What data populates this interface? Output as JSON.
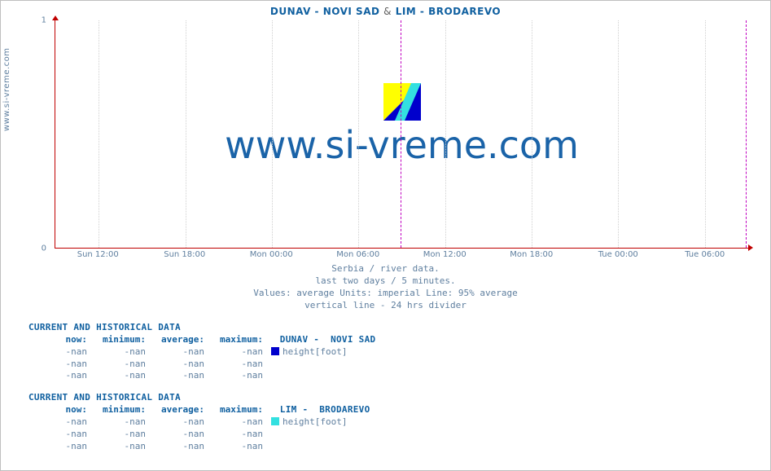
{
  "title_parts": {
    "a": "DUNAV -  NOVI SAD",
    "amp": "&",
    "b": "LIM -  BRODAREVO"
  },
  "ylabel": "www.si-vreme.com",
  "watermark": "www.si-vreme.com",
  "chart": {
    "type": "line",
    "background_color": "#ffffff",
    "axis_color": "#c00000",
    "grid_color": "#d0d0d0",
    "divider_color": "#c000c0",
    "ylim": [
      0,
      1
    ],
    "yticks": [
      {
        "value": 0,
        "label": "0",
        "pos_pct": 100
      },
      {
        "value": 1,
        "label": "1",
        "pos_pct": 0
      }
    ],
    "xticks": [
      {
        "label": "Sun 12:00",
        "pos_pct": 6.25
      },
      {
        "label": "Sun 18:00",
        "pos_pct": 18.75
      },
      {
        "label": "Mon 00:00",
        "pos_pct": 31.25
      },
      {
        "label": "Mon 06:00",
        "pos_pct": 43.75
      },
      {
        "label": "Mon 12:00",
        "pos_pct": 56.25
      },
      {
        "label": "Mon 18:00",
        "pos_pct": 68.75
      },
      {
        "label": "Tue 00:00",
        "pos_pct": 81.25
      },
      {
        "label": "Tue 06:00",
        "pos_pct": 93.75
      }
    ],
    "dividers_pct": [
      49.8,
      99.6
    ],
    "logo_colors": {
      "tri1": "#ffff00",
      "tri2": "#0000cc",
      "band": "#33e0e0"
    }
  },
  "caption": {
    "l1": "Serbia / river data.",
    "l2": "last two days / 5 minutes.",
    "l3": "Values: average  Units: imperial  Line: 95% average",
    "l4": "vertical line - 24 hrs  divider"
  },
  "columns": {
    "c0": "now:",
    "c1": "minimum:",
    "c2": "average:",
    "c3": "maximum:"
  },
  "tables": [
    {
      "heading": "CURRENT AND HISTORICAL DATA",
      "series_label": "DUNAV -  NOVI SAD",
      "swatch_color": "#0000cc",
      "legend": "height[foot]",
      "rows": [
        [
          "-nan",
          "-nan",
          "-nan",
          "-nan"
        ],
        [
          "-nan",
          "-nan",
          "-nan",
          "-nan"
        ],
        [
          "-nan",
          "-nan",
          "-nan",
          "-nan"
        ]
      ]
    },
    {
      "heading": "CURRENT AND HISTORICAL DATA",
      "series_label": "LIM -  BRODAREVO",
      "swatch_color": "#33e0e0",
      "legend": "height[foot]",
      "rows": [
        [
          "-nan",
          "-nan",
          "-nan",
          "-nan"
        ],
        [
          "-nan",
          "-nan",
          "-nan",
          "-nan"
        ],
        [
          "-nan",
          "-nan",
          "-nan",
          "-nan"
        ]
      ]
    }
  ]
}
